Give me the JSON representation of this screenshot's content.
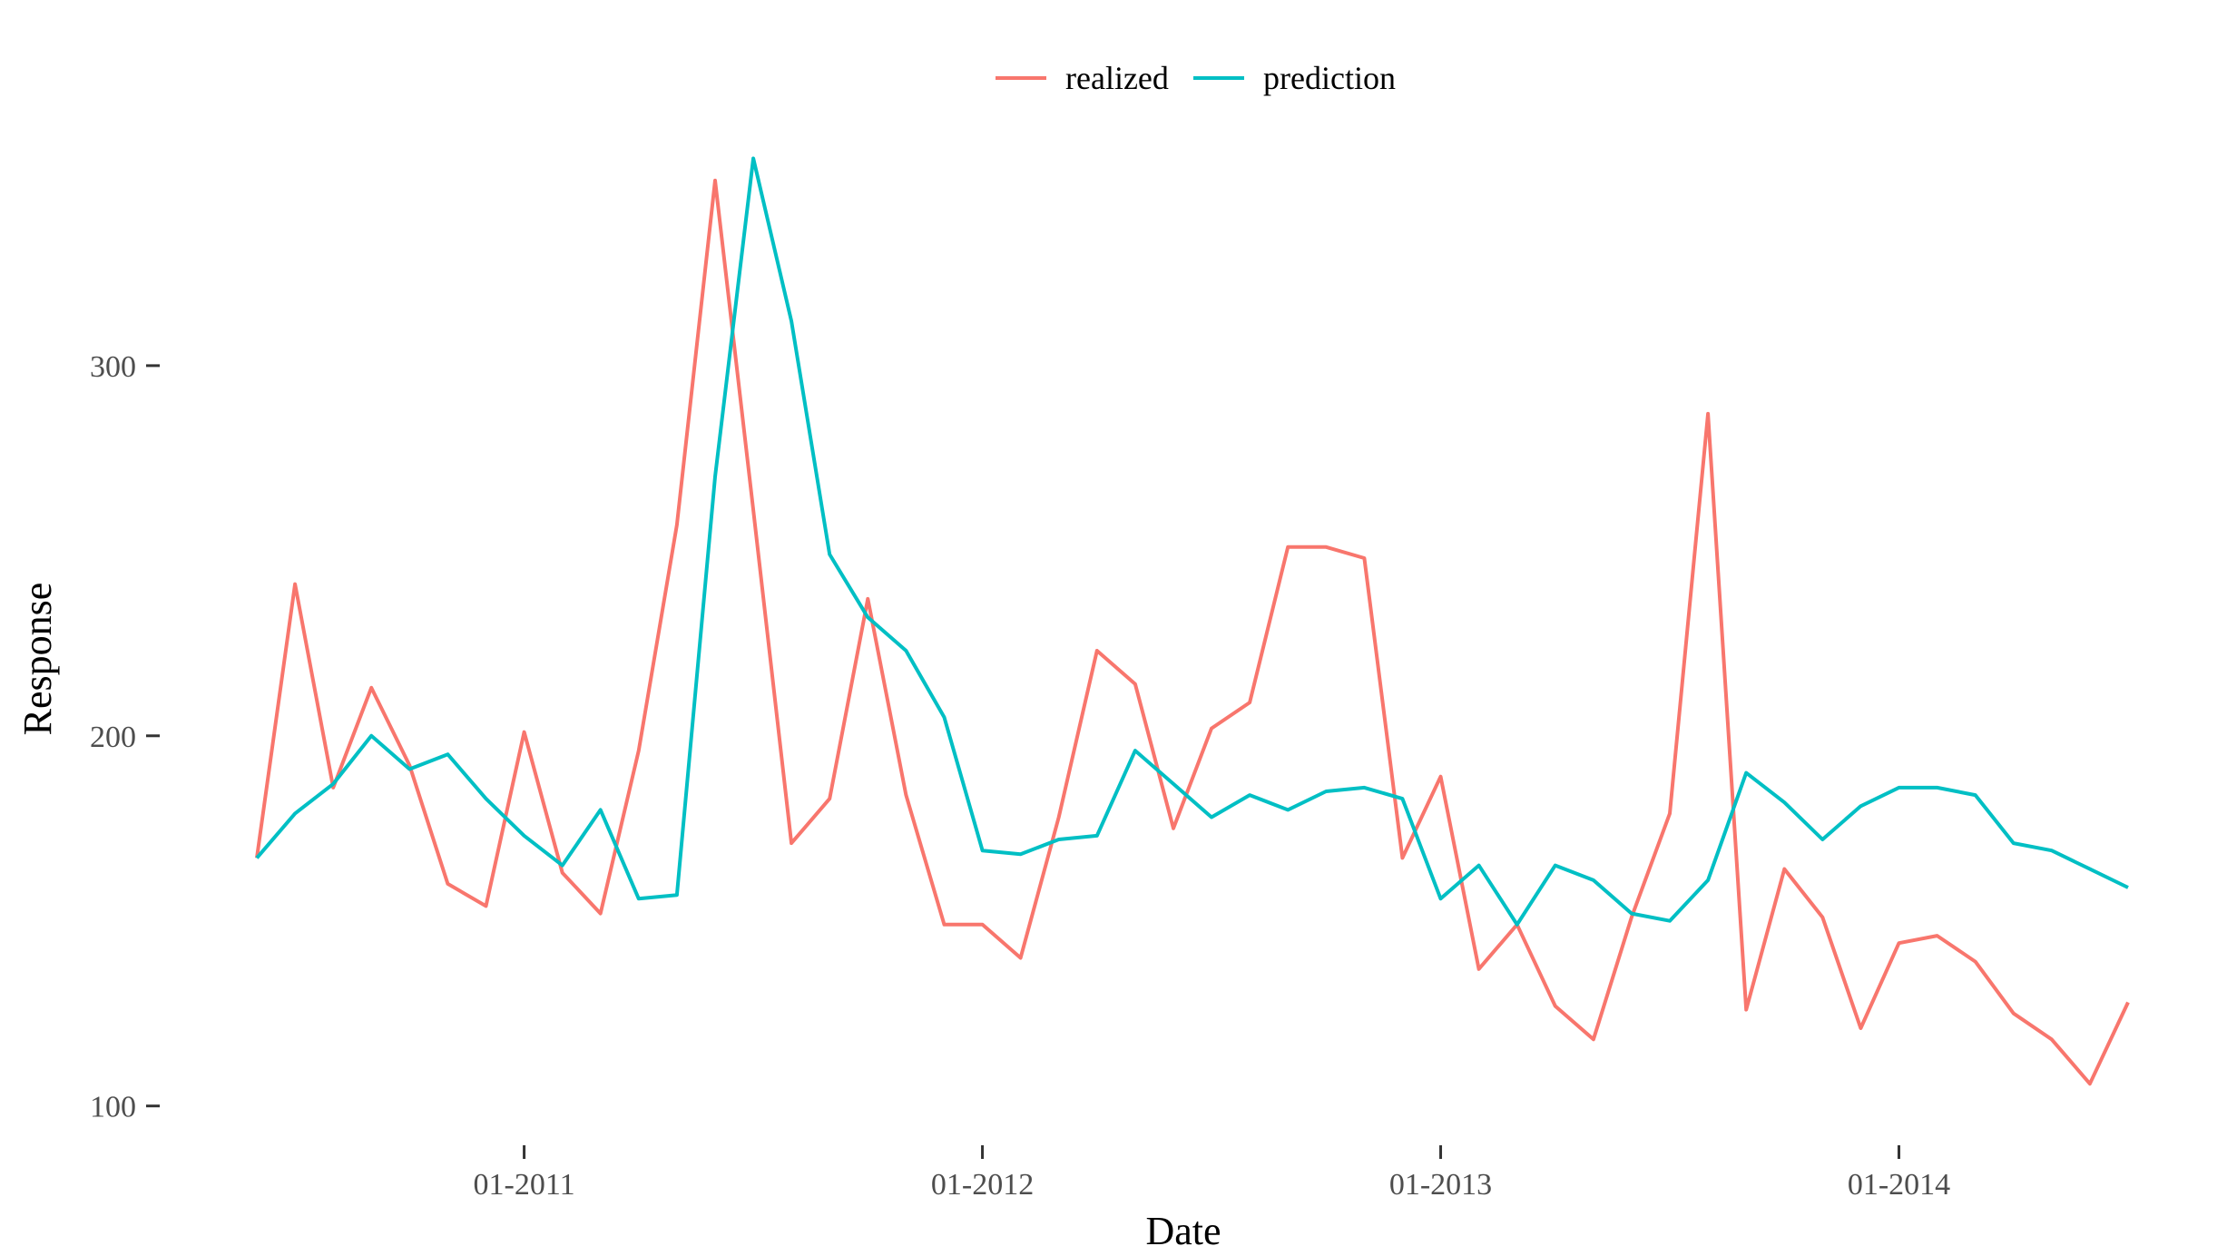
{
  "chart_data": {
    "type": "line",
    "xlabel": "Date",
    "ylabel": "Response",
    "x": [
      "2010-06",
      "2010-07",
      "2010-08",
      "2010-09",
      "2010-10",
      "2010-11",
      "2010-12",
      "2011-01",
      "2011-02",
      "2011-03",
      "2011-04",
      "2011-05",
      "2011-06",
      "2011-07",
      "2011-08",
      "2011-09",
      "2011-10",
      "2011-11",
      "2011-12",
      "2012-01",
      "2012-02",
      "2012-03",
      "2012-04",
      "2012-05",
      "2012-06",
      "2012-07",
      "2012-08",
      "2012-09",
      "2012-10",
      "2012-11",
      "2012-12",
      "2013-01",
      "2013-02",
      "2013-03",
      "2013-04",
      "2013-05",
      "2013-06",
      "2013-07",
      "2013-08",
      "2013-09",
      "2013-10",
      "2013-11",
      "2013-12",
      "2014-01",
      "2014-02",
      "2014-03",
      "2014-04",
      "2014-05",
      "2014-06",
      "2014-07"
    ],
    "series": [
      {
        "name": "realized",
        "color": "#F8766D",
        "values": [
          167,
          241,
          186,
          213,
          192,
          160,
          154,
          201,
          163,
          152,
          196,
          257,
          350,
          261,
          171,
          183,
          237,
          184,
          149,
          149,
          140,
          178,
          223,
          214,
          175,
          202,
          209,
          251,
          251,
          248,
          167,
          189,
          137,
          149,
          127,
          118,
          151,
          179,
          287,
          126,
          164,
          151,
          121,
          144,
          146,
          139,
          125,
          118,
          106,
          128
        ]
      },
      {
        "name": "prediction",
        "color": "#00BFC4",
        "values": [
          167,
          179,
          187,
          200,
          191,
          195,
          183,
          173,
          165,
          180,
          156,
          157,
          270,
          356,
          312,
          249,
          232,
          223,
          205,
          169,
          168,
          172,
          173,
          196,
          187,
          178,
          184,
          180,
          185,
          186,
          183,
          156,
          165,
          149,
          165,
          161,
          152,
          150,
          161,
          190,
          182,
          172,
          181,
          186,
          186,
          184,
          171,
          169,
          164,
          159
        ]
      }
    ],
    "x_ticks": [
      "01-2011",
      "01-2012",
      "01-2013",
      "01-2014"
    ],
    "y_ticks": [
      "100",
      "200",
      "300"
    ],
    "ylim": [
      96,
      362
    ],
    "grid": false,
    "legend": "top-center"
  }
}
